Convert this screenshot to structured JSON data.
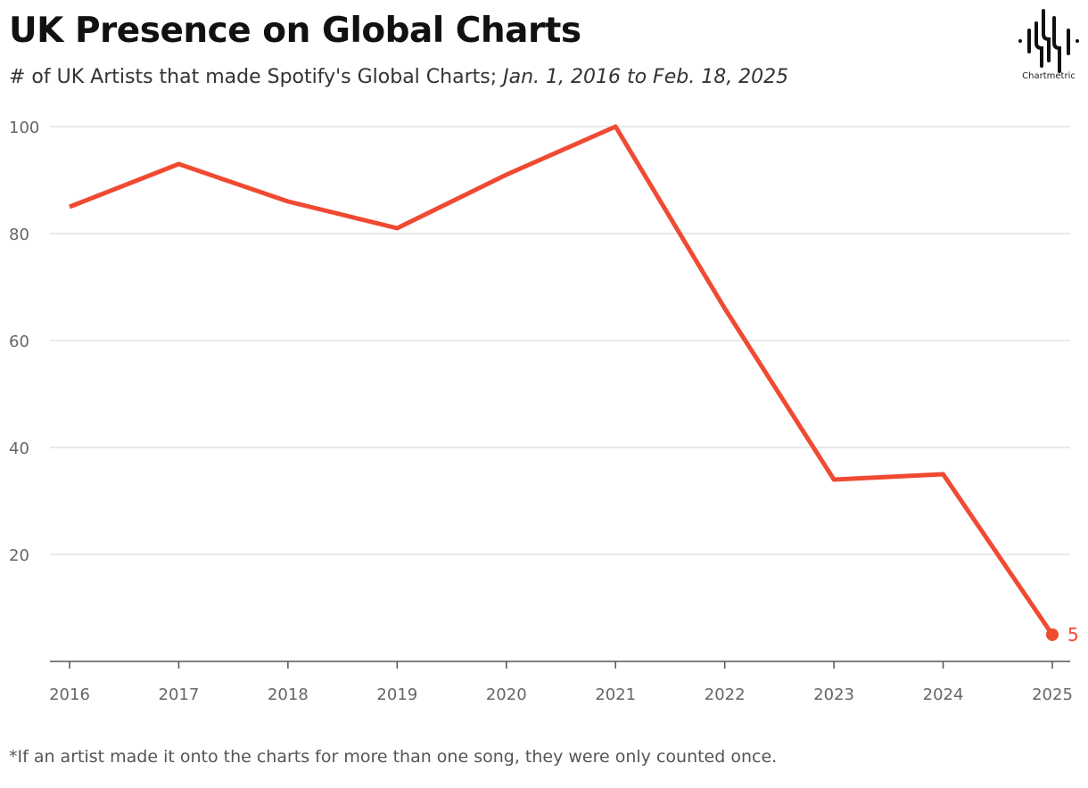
{
  "header": {
    "title": "UK Presence on Global Charts",
    "subtitle_main": "# of UK Artists that made Spotify's Global Charts; ",
    "subtitle_italic": "Jan. 1, 2016 to Feb. 18, 2025"
  },
  "logo": {
    "text": "Chartmetric",
    "icon": "waveform-logo-icon"
  },
  "footnote": "*If an artist made it onto the charts for more than one song, they were only counted once.",
  "colors": {
    "line": "#f04a32",
    "grid": "#e3e3e3",
    "axis": "#555555"
  },
  "chart_data": {
    "type": "line",
    "title": "UK Presence on Global Charts",
    "categories": [
      "2016",
      "2017",
      "2018",
      "2019",
      "2020",
      "2021",
      "2022",
      "2023",
      "2024",
      "2025"
    ],
    "values": [
      85,
      93,
      86,
      81,
      91,
      100,
      66,
      34,
      35,
      5
    ],
    "ylim": [
      0,
      100
    ],
    "yticks": [
      20,
      40,
      60,
      80,
      100
    ],
    "grid": true,
    "end_label": "5"
  }
}
